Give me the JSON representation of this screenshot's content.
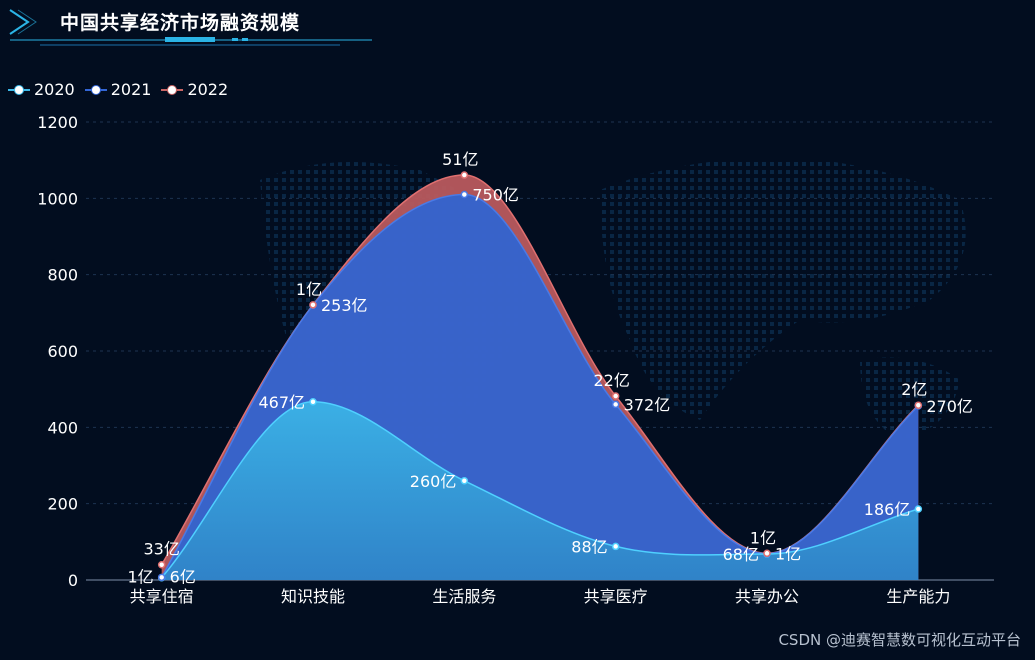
{
  "header": {
    "title": "中国共享经济市场融资规模"
  },
  "chart_data": {
    "type": "area",
    "title": "中国共享经济市场融资规模",
    "categories": [
      "共享住宿",
      "知识技能",
      "生活服务",
      "共享医疗",
      "共享办公",
      "生产能力"
    ],
    "series": [
      {
        "name": "2020",
        "color": "#3bb8e8",
        "values": [
          6,
          467,
          260,
          88,
          68,
          186
        ],
        "labels": [
          "6亿",
          "467亿",
          "260亿",
          "88亿",
          "68亿",
          "186亿"
        ]
      },
      {
        "name": "2021",
        "color": "#3366d6",
        "values": [
          1,
          253,
          750,
          372,
          1,
          270
        ],
        "labels": [
          "1亿",
          "253亿",
          "750亿",
          "372亿",
          "1亿",
          "270亿"
        ]
      },
      {
        "name": "2022",
        "color": "#c86464",
        "values": [
          33,
          1,
          51,
          22,
          1,
          2
        ],
        "labels": [
          "33亿",
          "1亿",
          "51亿",
          "22亿",
          "1亿",
          "2亿"
        ]
      }
    ],
    "stacked": true,
    "ylim": [
      0,
      1200
    ],
    "yticks": [
      0,
      200,
      400,
      600,
      800,
      1000,
      1200
    ],
    "legend_position": "top-left",
    "grid": true,
    "background_color": "#020d1f"
  },
  "watermark": "CSDN @迪赛智慧数可视化互动平台"
}
